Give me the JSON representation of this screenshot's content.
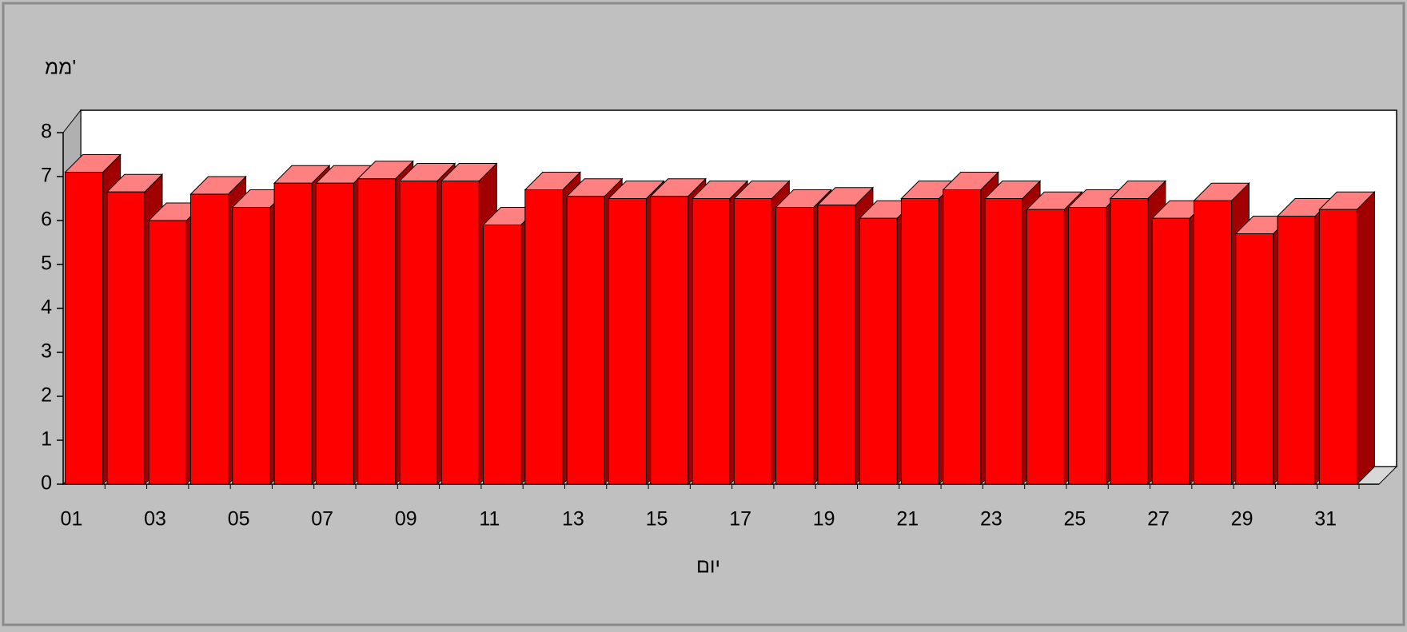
{
  "chart_data": {
    "type": "bar3d",
    "y_label": "ממ'",
    "x_label": "יום",
    "categories": [
      "01",
      null,
      "03",
      null,
      "05",
      null,
      "07",
      null,
      "09",
      null,
      "11",
      null,
      "13",
      null,
      "15",
      null,
      "17",
      null,
      "19",
      null,
      "21",
      null,
      "23",
      null,
      "25",
      null,
      "27",
      null,
      "29",
      null,
      "31"
    ],
    "values": [
      7.1,
      6.65,
      6.0,
      6.6,
      6.3,
      6.85,
      6.85,
      6.95,
      6.9,
      6.9,
      5.9,
      6.7,
      6.55,
      6.5,
      6.55,
      6.5,
      6.5,
      6.3,
      6.35,
      6.05,
      6.5,
      6.7,
      6.5,
      6.25,
      6.3,
      6.5,
      6.05,
      6.45,
      5.7,
      6.1,
      6.25
    ],
    "color": "#ff0000",
    "ylim": [
      0,
      8
    ],
    "yticks": [
      0,
      1,
      2,
      3,
      4,
      5,
      6,
      7,
      8
    ],
    "grid": false
  }
}
